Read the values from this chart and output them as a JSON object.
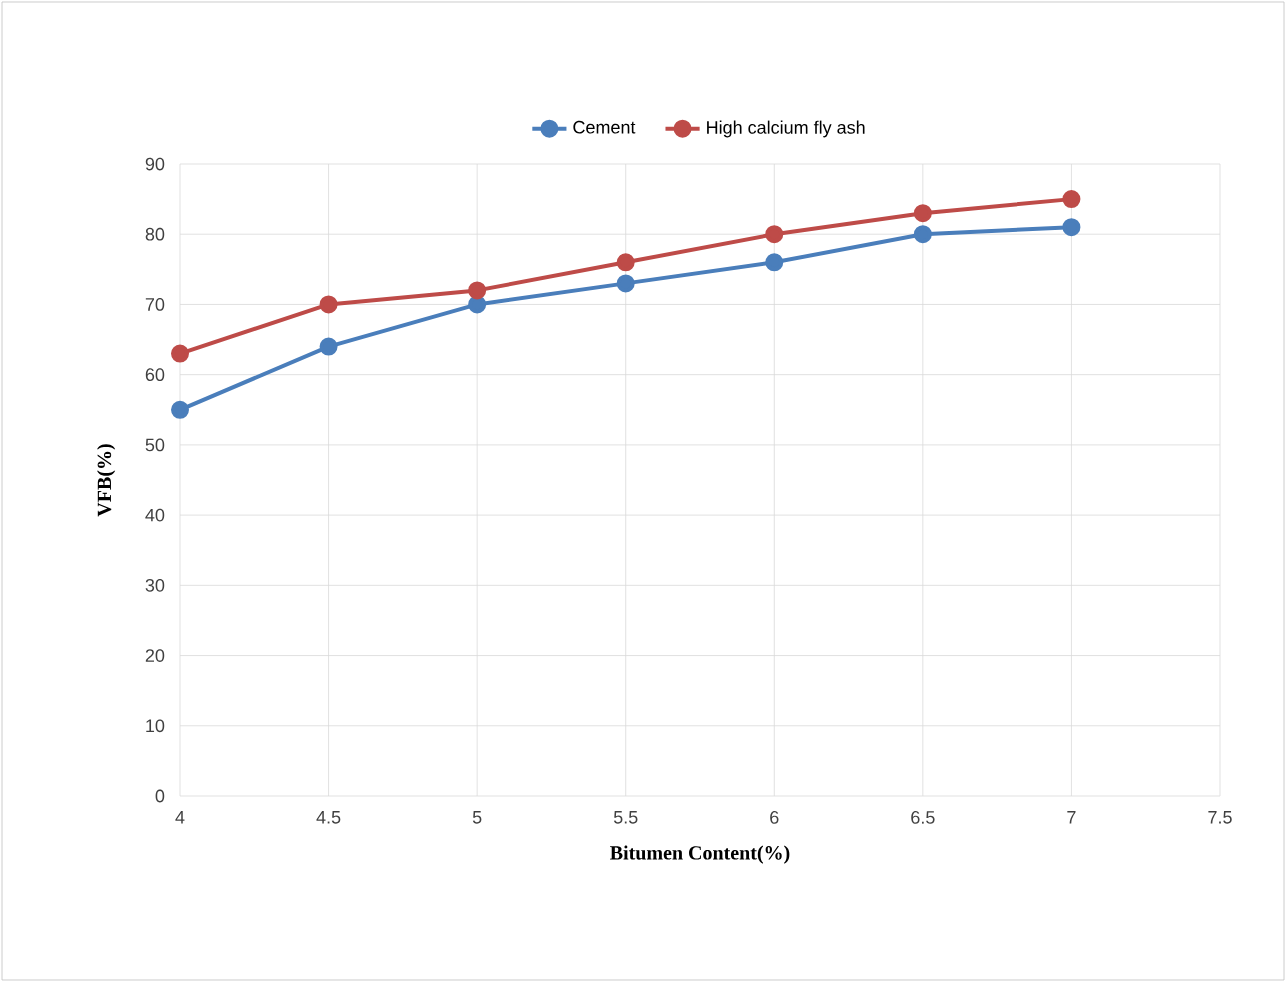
{
  "chart_data": {
    "type": "line",
    "xlabel": "Bitumen Content(%)",
    "ylabel": "VFB(%)",
    "x": [
      4,
      4.5,
      5,
      5.5,
      6,
      6.5,
      7
    ],
    "series": [
      {
        "name": "Cement",
        "color": "#4a7ebb",
        "values": [
          55,
          64,
          70,
          73,
          76,
          80,
          81
        ]
      },
      {
        "name": "High calcium fly ash",
        "color": "#be4b48",
        "values": [
          63,
          70,
          72,
          76,
          80,
          83,
          85
        ]
      }
    ],
    "xlim": [
      4,
      7.5
    ],
    "xticks": [
      4,
      4.5,
      5,
      5.5,
      6,
      6.5,
      7,
      7.5
    ],
    "ylim": [
      0,
      90
    ],
    "yticks": [
      0,
      10,
      20,
      30,
      40,
      50,
      60,
      70,
      80,
      90
    ],
    "grid": true,
    "legend": "top",
    "marker": "circle",
    "line_style": "solid"
  }
}
